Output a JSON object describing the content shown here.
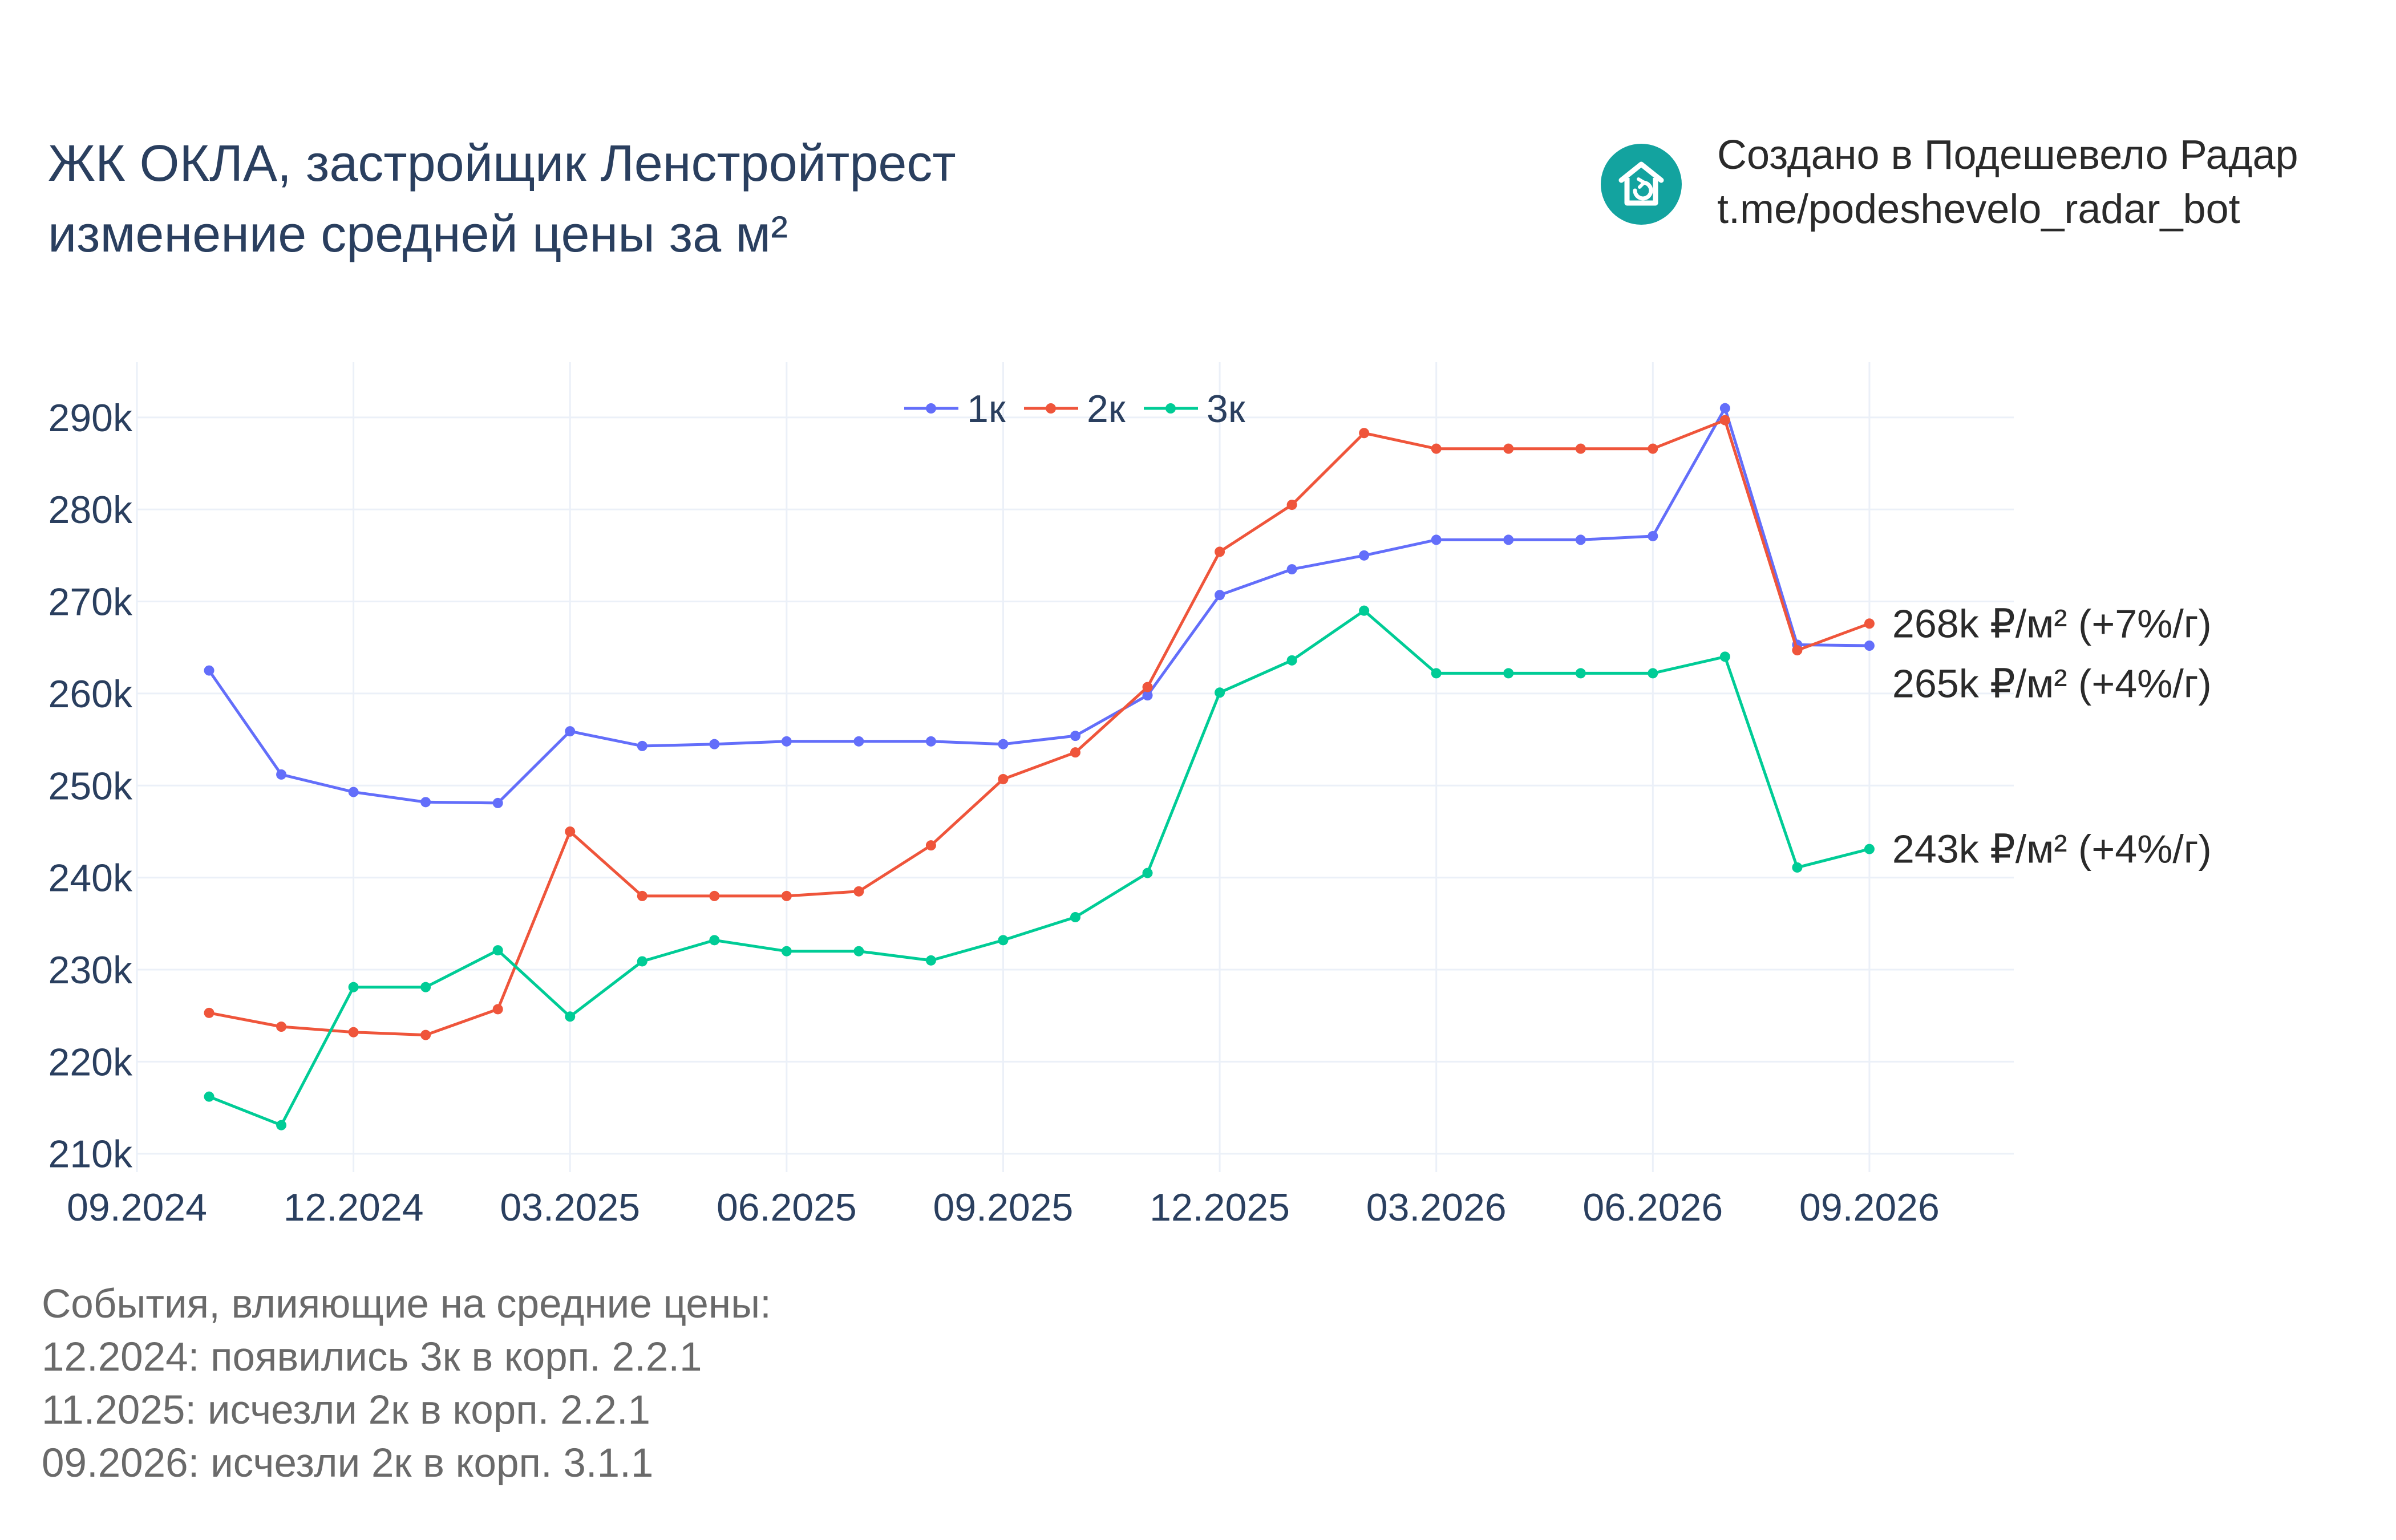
{
  "title": {
    "line1": "ЖК ОКЛА, застройщик Ленстройтрест",
    "line2": "изменение средней цены за м²"
  },
  "brand": {
    "line1": "Создано в Подешевело Радар",
    "line2": "t.me/podeshevelo_radar_bot",
    "icon": "house-icon",
    "color": "#13a39f"
  },
  "events": {
    "heading": "События, влияющие на средние цены:",
    "items": [
      "12.2024: появились 3к в корп. 2.2.1",
      "11.2025: исчезли 2к в корп. 2.2.1",
      "09.2026: исчезли 2к в корп. 3.1.1"
    ]
  },
  "chart_data": {
    "type": "line",
    "x_tick_labels": [
      "09.2024",
      "12.2024",
      "03.2025",
      "06.2025",
      "09.2025",
      "12.2025",
      "03.2026",
      "06.2026",
      "09.2026"
    ],
    "x": [
      "10.2024",
      "11.2024",
      "12.2024",
      "01.2025",
      "02.2025",
      "03.2025",
      "04.2025",
      "05.2025",
      "06.2025",
      "07.2025",
      "08.2025",
      "09.2025",
      "10.2025",
      "11.2025",
      "12.2025",
      "01.2026",
      "02.2026",
      "03.2026",
      "04.2026",
      "05.2026",
      "06.2026",
      "07.2026",
      "08.2026",
      "09.2026"
    ],
    "xlim": [
      "09.2024",
      "11.2026"
    ],
    "ylim": [
      208000,
      296000
    ],
    "y_ticks": [
      210000,
      220000,
      230000,
      240000,
      250000,
      260000,
      270000,
      280000,
      290000
    ],
    "y_tick_labels": [
      "210k",
      "220k",
      "230k",
      "240k",
      "250k",
      "260k",
      "270k",
      "280k",
      "290k"
    ],
    "grid": true,
    "legend_position": "top-center",
    "series": [
      {
        "name": "1к",
        "color": "#636efa",
        "values": [
          262500,
          251200,
          249300,
          248200,
          248100,
          255900,
          254300,
          254500,
          254800,
          254800,
          254800,
          254500,
          255400,
          259800,
          270700,
          273500,
          275000,
          276700,
          276700,
          276700,
          277100,
          291000,
          265300,
          265200
        ],
        "end_label": "265k ₽/м² (+4%/г)"
      },
      {
        "name": "2к",
        "color": "#ef553b",
        "values": [
          225300,
          223800,
          223200,
          222900,
          225700,
          245000,
          238000,
          238000,
          238000,
          238500,
          243500,
          250700,
          253600,
          260700,
          275400,
          280500,
          288300,
          286600,
          286600,
          286600,
          286600,
          289700,
          264700,
          267600
        ],
        "end_label": "268k ₽/м² (+7%/г)"
      },
      {
        "name": "3к",
        "color": "#00cc96",
        "values": [
          216200,
          213100,
          228100,
          228100,
          232100,
          224900,
          230900,
          233200,
          232000,
          232000,
          231000,
          233200,
          235700,
          240500,
          260100,
          263600,
          269000,
          262200,
          262200,
          262200,
          262200,
          264000,
          241100,
          243100
        ],
        "end_label": "243k ₽/м² (+4%/г)"
      }
    ]
  }
}
